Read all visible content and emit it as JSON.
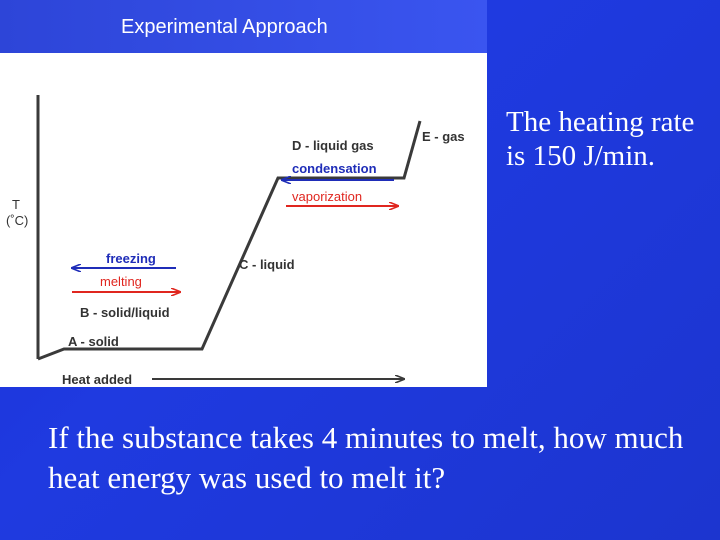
{
  "slide": {
    "title": "Experimental Approach",
    "rate_text": "The heating rate is 150 J/min.",
    "question": "If the substance takes 4 minutes to melt, how much heat energy was used to melt it?"
  },
  "diagram": {
    "y_axis_label_line1": "T",
    "y_axis_label_line2": "(˚C)",
    "x_axis_label": "Heat added",
    "labels": {
      "a_solid": "A - solid",
      "b_solid_liquid": "B - solid/liquid",
      "c_liquid": "C - liquid",
      "d_liquid_gas": "D - liquid gas",
      "e_gas": "E - gas",
      "freezing": "freezing",
      "melting": "melting",
      "condensation": "condensation",
      "vaporization": "vaporization"
    },
    "colors": {
      "blue_arrow": "#1f2db8",
      "red_arrow": "#e0261f",
      "curve": "#3a3a3a"
    }
  }
}
